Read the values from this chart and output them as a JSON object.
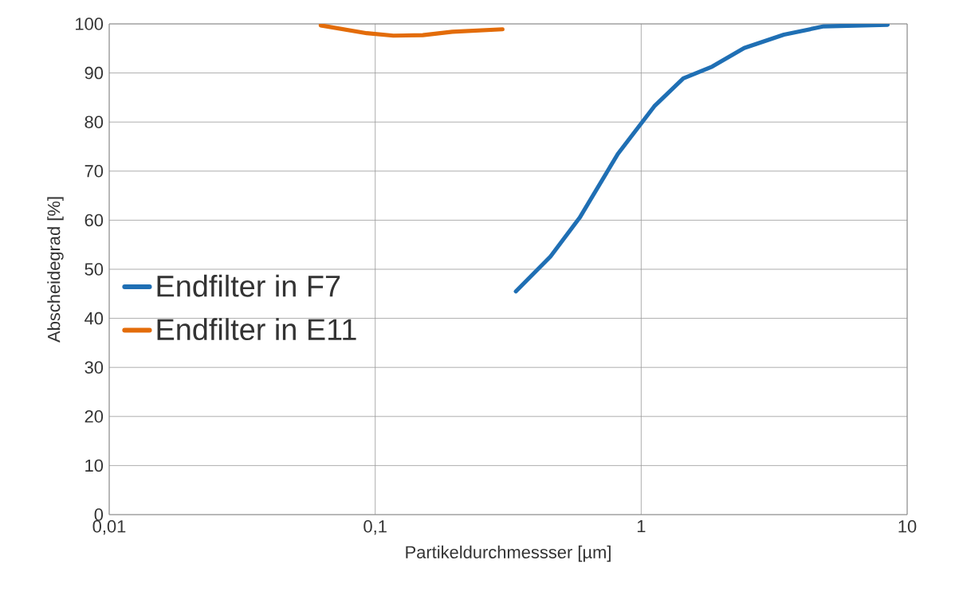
{
  "chart_data": {
    "type": "line",
    "xlabel": "Partikeldurchmessser [µm]",
    "ylabel": "Abscheidegrad [%]",
    "log": "x",
    "grid": true,
    "legend": "left",
    "line_style": "solid",
    "marker": "none",
    "xlim": [
      0.01,
      10
    ],
    "xticks": [
      {
        "value": 0.01,
        "label": "0,01"
      },
      {
        "value": 0.1,
        "label": "0,1"
      },
      {
        "value": 1,
        "label": "1"
      },
      {
        "value": 10,
        "label": "10"
      }
    ],
    "ylim": [
      0,
      100
    ],
    "yticks": [
      0,
      10,
      20,
      30,
      40,
      50,
      60,
      70,
      80,
      90,
      100
    ],
    "series": [
      {
        "name": "Endfilter in F7",
        "color": "#1f6fb4",
        "x": [
          0.338,
          0.456,
          0.587,
          0.817,
          1.12,
          1.44,
          1.85,
          2.44,
          3.44,
          4.86,
          8.44
        ],
        "values": [
          45.5,
          52.6,
          60.5,
          73.5,
          83.2,
          88.9,
          91.3,
          95.1,
          97.8,
          99.5,
          99.8
        ]
      },
      {
        "name": "Endfilter in E11",
        "color": "#e36c0a",
        "x": [
          0.0624,
          0.093,
          0.117,
          0.151,
          0.195,
          0.301
        ],
        "values": [
          99.7,
          98.1,
          97.6,
          97.7,
          98.4,
          98.9
        ]
      }
    ]
  }
}
